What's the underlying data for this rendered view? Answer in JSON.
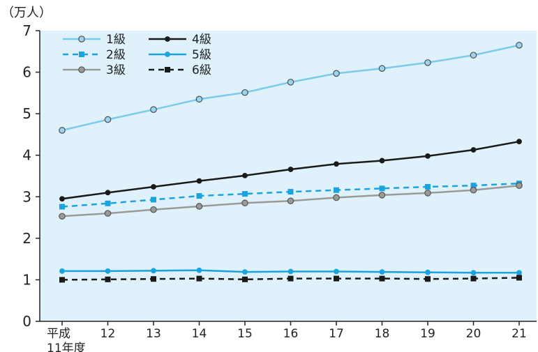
{
  "chart_data": {
    "type": "line",
    "unit_label": "（万人）",
    "categories": [
      "平成\n11年度",
      "12",
      "13",
      "14",
      "15",
      "16",
      "17",
      "18",
      "19",
      "20",
      "21"
    ],
    "ylim": [
      0,
      7
    ],
    "yticks": [
      0,
      1,
      2,
      3,
      4,
      5,
      6,
      7
    ],
    "grid": false,
    "legend_position": "top-left",
    "series": [
      {
        "name": "1級",
        "values": [
          4.6,
          4.86,
          5.1,
          5.35,
          5.51,
          5.76,
          5.97,
          6.09,
          6.23,
          6.41,
          6.65
        ],
        "color": "#7ccbea",
        "dashed": false,
        "marker": "circle",
        "marker_fill": "#9ad6ef",
        "marker_stroke": "#4d4d4d"
      },
      {
        "name": "2級",
        "values": [
          2.76,
          2.84,
          2.93,
          3.02,
          3.07,
          3.12,
          3.16,
          3.2,
          3.24,
          3.27,
          3.32
        ],
        "color": "#1aa3df",
        "dashed": true,
        "marker": "square",
        "marker_fill": "#1aa3df",
        "marker_stroke": "#1aa3df"
      },
      {
        "name": "3級",
        "values": [
          2.53,
          2.6,
          2.69,
          2.77,
          2.85,
          2.9,
          2.98,
          3.04,
          3.09,
          3.16,
          3.27
        ],
        "color": "#9a9a9a",
        "dashed": false,
        "marker": "circle",
        "marker_fill": "#9a9a9a",
        "marker_stroke": "#555555"
      },
      {
        "name": "4級",
        "values": [
          2.95,
          3.1,
          3.24,
          3.38,
          3.51,
          3.66,
          3.79,
          3.87,
          3.98,
          4.13,
          4.33
        ],
        "color": "#1a1a1a",
        "dashed": false,
        "marker": "dot",
        "marker_fill": "#1a1a1a",
        "marker_stroke": "#1a1a1a"
      },
      {
        "name": "5級",
        "values": [
          1.21,
          1.21,
          1.22,
          1.23,
          1.19,
          1.2,
          1.2,
          1.19,
          1.18,
          1.17,
          1.17
        ],
        "color": "#1aa3df",
        "dashed": false,
        "marker": "dot",
        "marker_fill": "#1aa3df",
        "marker_stroke": "#1aa3df"
      },
      {
        "name": "6級",
        "values": [
          1.0,
          1.01,
          1.02,
          1.03,
          1.01,
          1.03,
          1.03,
          1.03,
          1.02,
          1.03,
          1.05
        ],
        "color": "#1a1a1a",
        "dashed": true,
        "marker": "square",
        "marker_fill": "#1a1a1a",
        "marker_stroke": "#1a1a1a"
      }
    ]
  },
  "colors": {
    "plot_background": "#dff1fa",
    "axis": "#222222"
  }
}
